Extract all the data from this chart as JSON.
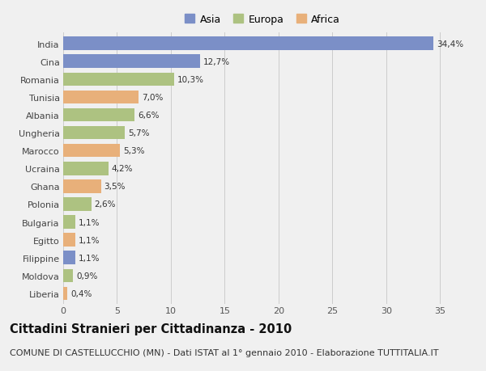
{
  "countries": [
    "India",
    "Cina",
    "Romania",
    "Tunisia",
    "Albania",
    "Ungheria",
    "Marocco",
    "Ucraina",
    "Ghana",
    "Polonia",
    "Bulgaria",
    "Egitto",
    "Filippine",
    "Moldova",
    "Liberia"
  ],
  "values": [
    34.4,
    12.7,
    10.3,
    7.0,
    6.6,
    5.7,
    5.3,
    4.2,
    3.5,
    2.6,
    1.1,
    1.1,
    1.1,
    0.9,
    0.4
  ],
  "labels": [
    "34,4%",
    "12,7%",
    "10,3%",
    "7,0%",
    "6,6%",
    "5,7%",
    "5,3%",
    "4,2%",
    "3,5%",
    "2,6%",
    "1,1%",
    "1,1%",
    "1,1%",
    "0,9%",
    "0,4%"
  ],
  "continents": [
    "Asia",
    "Asia",
    "Europa",
    "Africa",
    "Europa",
    "Europa",
    "Africa",
    "Europa",
    "Africa",
    "Europa",
    "Europa",
    "Africa",
    "Asia",
    "Europa",
    "Africa"
  ],
  "colors": {
    "Asia": "#7b8fc7",
    "Europa": "#adc281",
    "Africa": "#e8b07a"
  },
  "title": "Cittadini Stranieri per Cittadinanza - 2010",
  "subtitle": "COMUNE DI CASTELLUCCHIO (MN) - Dati ISTAT al 1° gennaio 2010 - Elaborazione TUTTITALIA.IT",
  "xlim": [
    0,
    37
  ],
  "xticks": [
    0,
    5,
    10,
    15,
    20,
    25,
    30,
    35
  ],
  "background_color": "#f0f0f0",
  "plot_background": "#f0f0f0",
  "grid_color": "#cccccc",
  "title_fontsize": 10.5,
  "subtitle_fontsize": 8,
  "label_fontsize": 7.5,
  "tick_fontsize": 8,
  "legend_fontsize": 9,
  "bar_height": 0.75
}
